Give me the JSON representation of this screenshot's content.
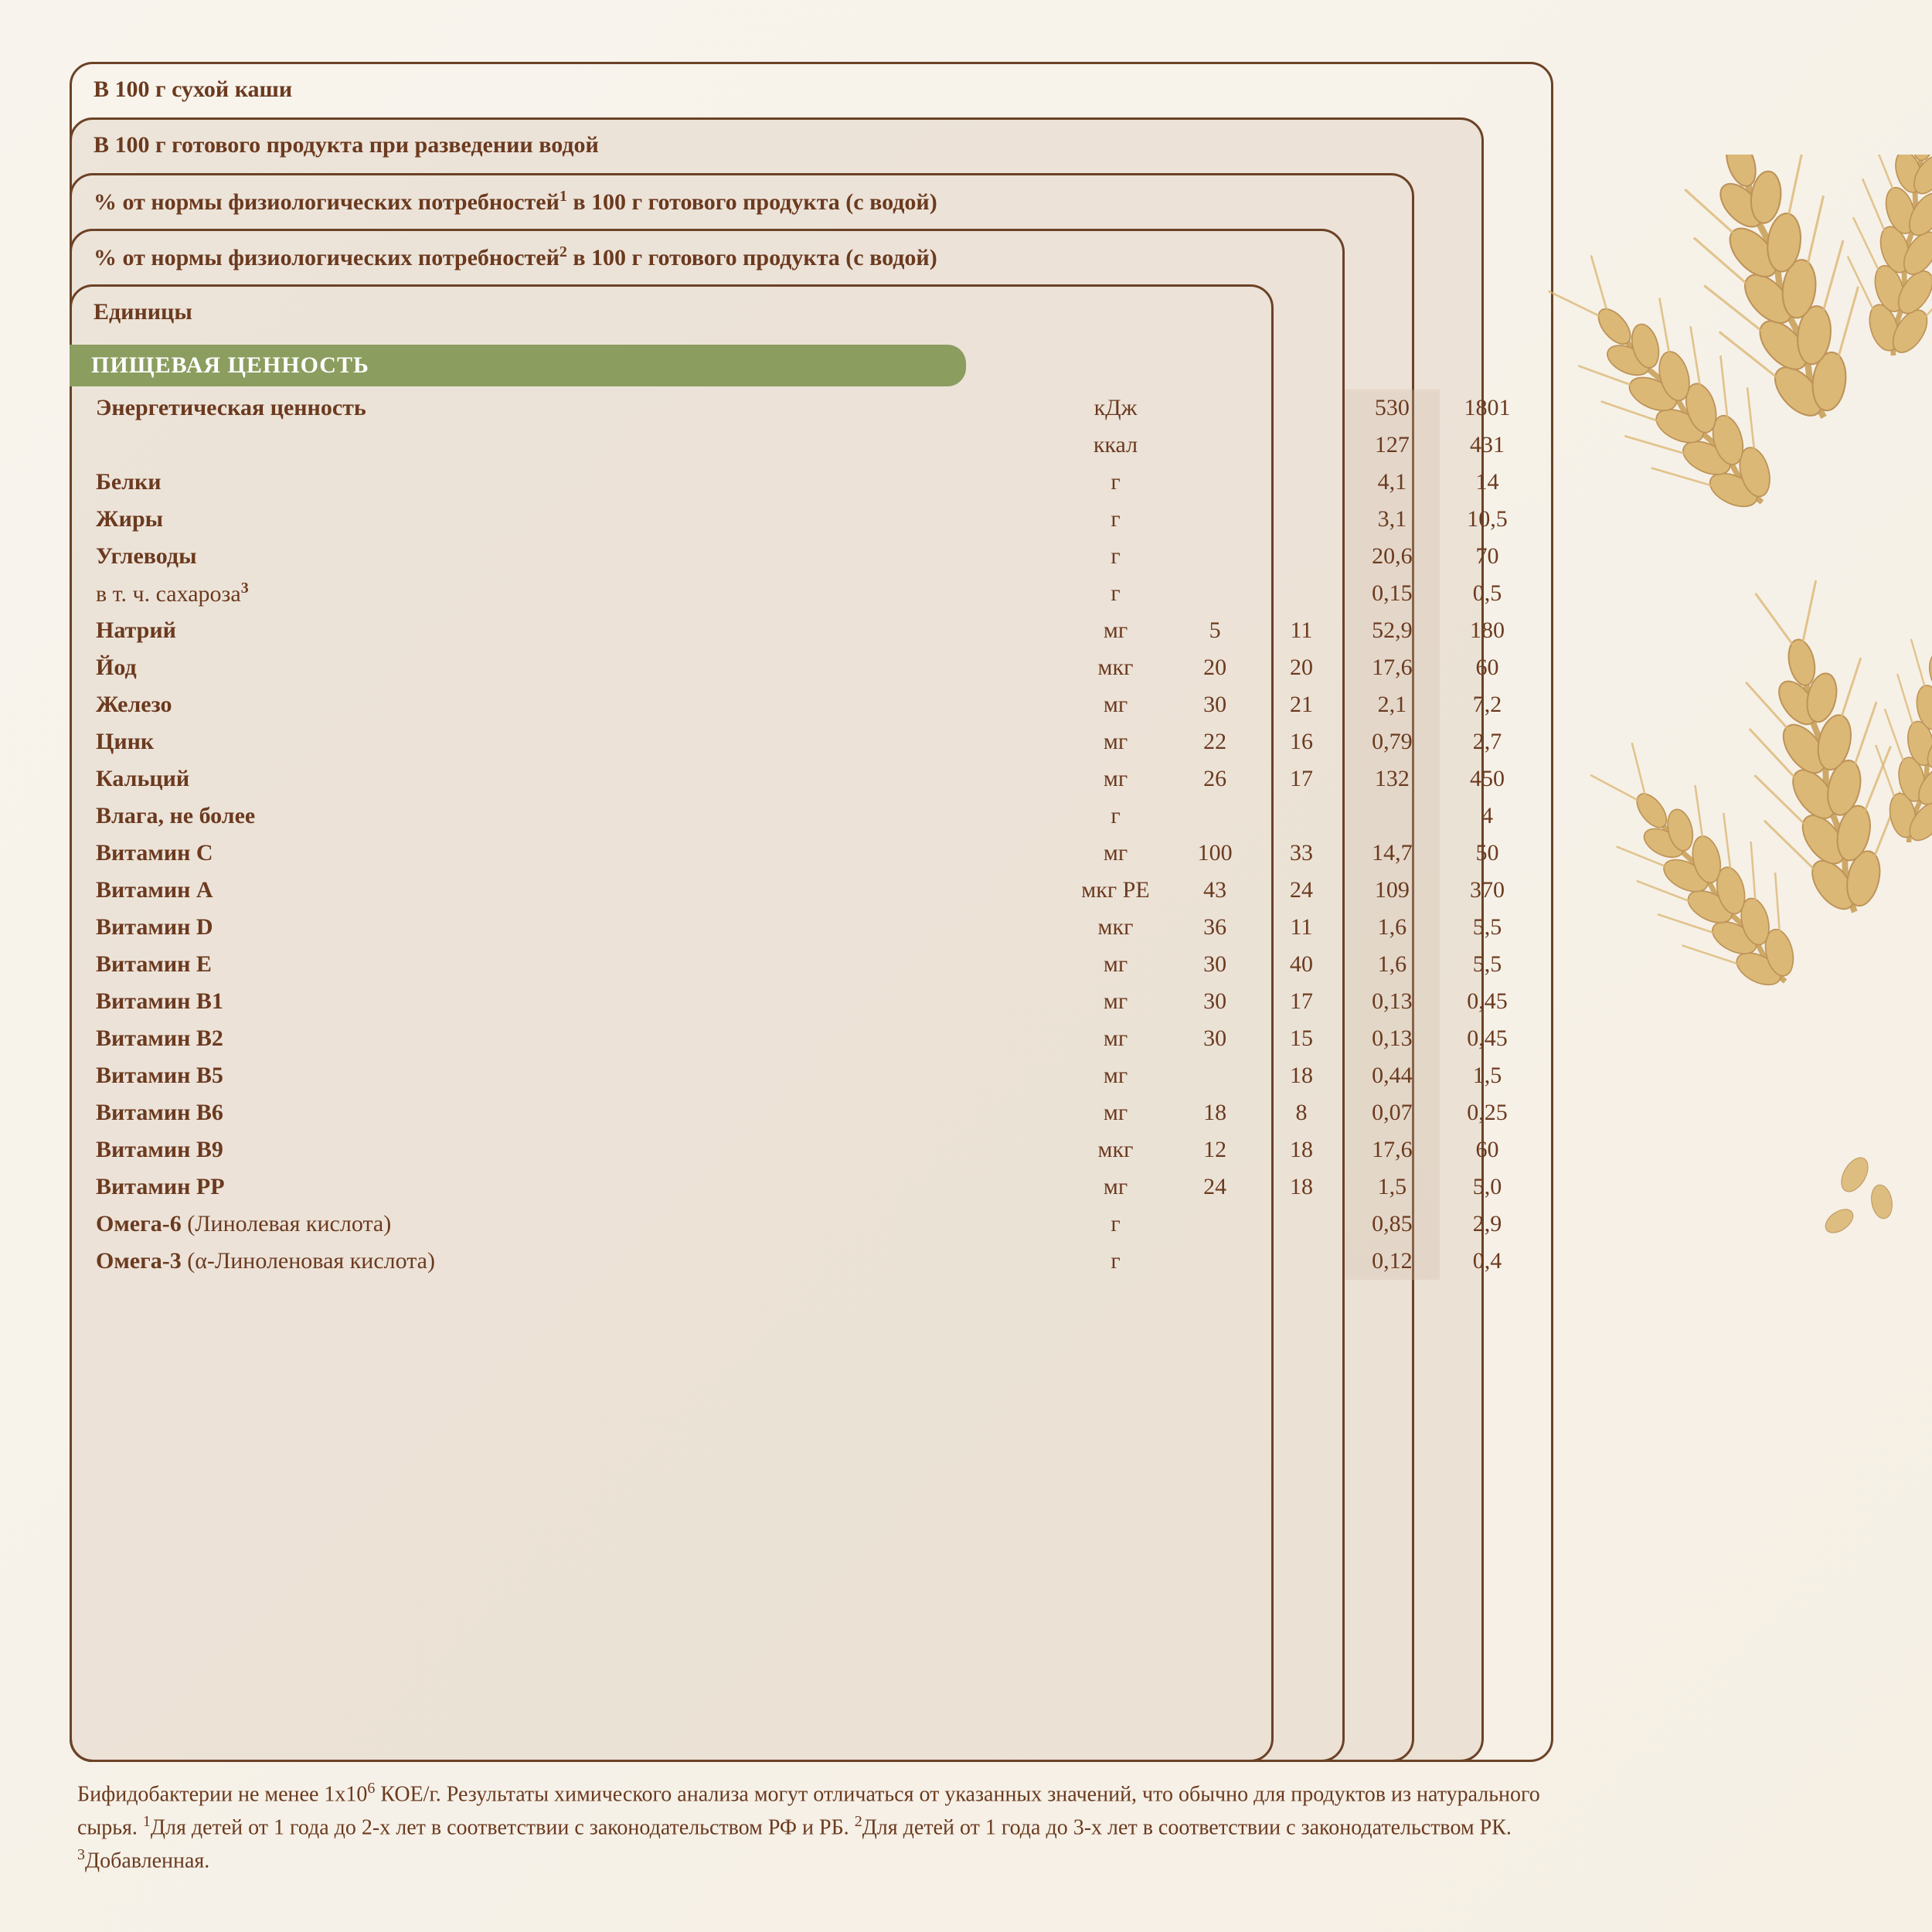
{
  "headers": {
    "h0": "В 100 г сухой каши",
    "h1": "В 100 г готового продукта при разведении водой",
    "h2_pre": "% от нормы физиологических потребностей",
    "h2_sup": "1",
    "h2_post": " в 100 г готового продукта (с водой)",
    "h3_pre": "% от нормы физиологических потребностей",
    "h3_sup": "2",
    "h3_post": " в 100 г готового продукта (с водой)",
    "h4": "Единицы"
  },
  "section_title": "ПИЩЕВАЯ ЦЕННОСТЬ",
  "colors": {
    "border": "#6b4226",
    "text": "#6b3a1f",
    "badge": "#8b9d5f",
    "stripe": "rgba(208,187,170,0.28)"
  },
  "rows": [
    {
      "name": "Энергетическая ценность",
      "unit": "кДж",
      "c1": "",
      "c2": "",
      "c3": "530",
      "c4": "1801"
    },
    {
      "name": "",
      "unit": "ккал",
      "c1": "",
      "c2": "",
      "c3": "127",
      "c4": "431"
    },
    {
      "name": "Белки",
      "unit": "г",
      "c1": "",
      "c2": "",
      "c3": "4,1",
      "c4": "14"
    },
    {
      "name": "Жиры",
      "unit": "г",
      "c1": "",
      "c2": "",
      "c3": "3,1",
      "c4": "10,5"
    },
    {
      "name": "Углеводы",
      "unit": "г",
      "c1": "",
      "c2": "",
      "c3": "20,6",
      "c4": "70"
    },
    {
      "name": "в т. ч. сахароза",
      "sup": "3",
      "unit": "г",
      "c1": "",
      "c2": "",
      "c3": "0,15",
      "c4": "0,5",
      "light": true
    },
    {
      "name": "Натрий",
      "unit": "мг",
      "c1": "5",
      "c2": "11",
      "c3": "52,9",
      "c4": "180"
    },
    {
      "name": "Йод",
      "unit": "мкг",
      "c1": "20",
      "c2": "20",
      "c3": "17,6",
      "c4": "60"
    },
    {
      "name": "Железо",
      "unit": "мг",
      "c1": "30",
      "c2": "21",
      "c3": "2,1",
      "c4": "7,2"
    },
    {
      "name": "Цинк",
      "unit": "мг",
      "c1": "22",
      "c2": "16",
      "c3": "0,79",
      "c4": "2,7"
    },
    {
      "name": "Кальций",
      "unit": "мг",
      "c1": "26",
      "c2": "17",
      "c3": "132",
      "c4": "450"
    },
    {
      "name": "Влага, не более",
      "unit": "г",
      "c1": "",
      "c2": "",
      "c3": "",
      "c4": "4"
    },
    {
      "name": "Витамин С",
      "unit": "мг",
      "c1": "100",
      "c2": "33",
      "c3": "14,7",
      "c4": "50"
    },
    {
      "name": "Витамин А",
      "unit": "мкг РЕ",
      "c1": "43",
      "c2": "24",
      "c3": "109",
      "c4": "370"
    },
    {
      "name": "Витамин D",
      "unit": "мкг",
      "c1": "36",
      "c2": "11",
      "c3": "1,6",
      "c4": "5,5"
    },
    {
      "name": "Витамин E",
      "unit": "мг",
      "c1": "30",
      "c2": "40",
      "c3": "1,6",
      "c4": "5,5"
    },
    {
      "name": "Витамин В1",
      "unit": "мг",
      "c1": "30",
      "c2": "17",
      "c3": "0,13",
      "c4": "0,45"
    },
    {
      "name": "Витамин В2",
      "unit": "мг",
      "c1": "30",
      "c2": "15",
      "c3": "0,13",
      "c4": "0,45"
    },
    {
      "name": "Витамин В5",
      "unit": "мг",
      "c1": "",
      "c2": "18",
      "c3": "0,44",
      "c4": "1,5"
    },
    {
      "name": "Витамин В6",
      "unit": "мг",
      "c1": "18",
      "c2": "8",
      "c3": "0,07",
      "c4": "0,25"
    },
    {
      "name": "Витамин В9",
      "unit": "мкг",
      "c1": "12",
      "c2": "18",
      "c3": "17,6",
      "c4": "60"
    },
    {
      "name": "Витамин РР",
      "unit": "мг",
      "c1": "24",
      "c2": "18",
      "c3": "1,5",
      "c4": "5,0"
    },
    {
      "name": "Омега-6",
      "paren": " (Линолевая кислота)",
      "unit": "г",
      "c1": "",
      "c2": "",
      "c3": "0,85",
      "c4": "2,9"
    },
    {
      "name": "Омега-3",
      "paren": " (α-Линоленовая кислота)",
      "unit": "г",
      "c1": "",
      "c2": "",
      "c3": "0,12",
      "c4": "0,4"
    }
  ],
  "footnote": {
    "t1": "Бифидобактерии не менее 1x10",
    "exp": "6",
    "t2": " КОЕ/г. Результаты химического анализа могут отличаться от указанных значений, что обычно для продуктов из натурального сырья. ",
    "s1": "1",
    "t3": "Для детей от 1 года до 2-х лет в соответствии с законодательством РФ и РБ. ",
    "s2": "2",
    "t4": "Для детей от 1 года до 3-х лет в соответствии с законодательством РК. ",
    "s3": "3",
    "t5": "Добавленная."
  }
}
